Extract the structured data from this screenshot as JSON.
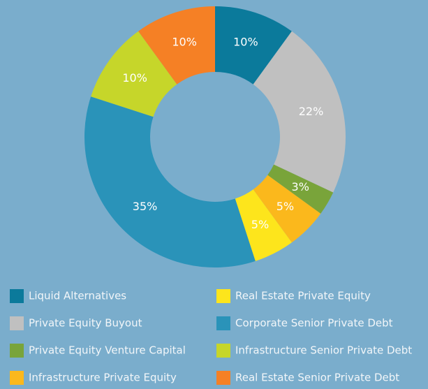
{
  "chart_data": {
    "type": "donut",
    "categories": [
      "Liquid Alternatives",
      "Private Equity Buyout",
      "Private Equity Venture Capital",
      "Infrastructure Private Equity",
      "Real Estate Private Equity",
      "Corporate Senior Private Debt",
      "Infrastructure Senior Private Debt",
      "Real Estate Senior Private Debt"
    ],
    "values": [
      10,
      22,
      3,
      5,
      5,
      35,
      10,
      10
    ],
    "value_labels": [
      "10%",
      "22%",
      "3%",
      "5%",
      "5%",
      "35%",
      "10%",
      "10%"
    ],
    "colors": [
      "#0b7a9b",
      "#c0c0c0",
      "#79a43a",
      "#fbb81c",
      "#fde51c",
      "#2a93b9",
      "#c6d62a",
      "#f58025"
    ]
  }
}
